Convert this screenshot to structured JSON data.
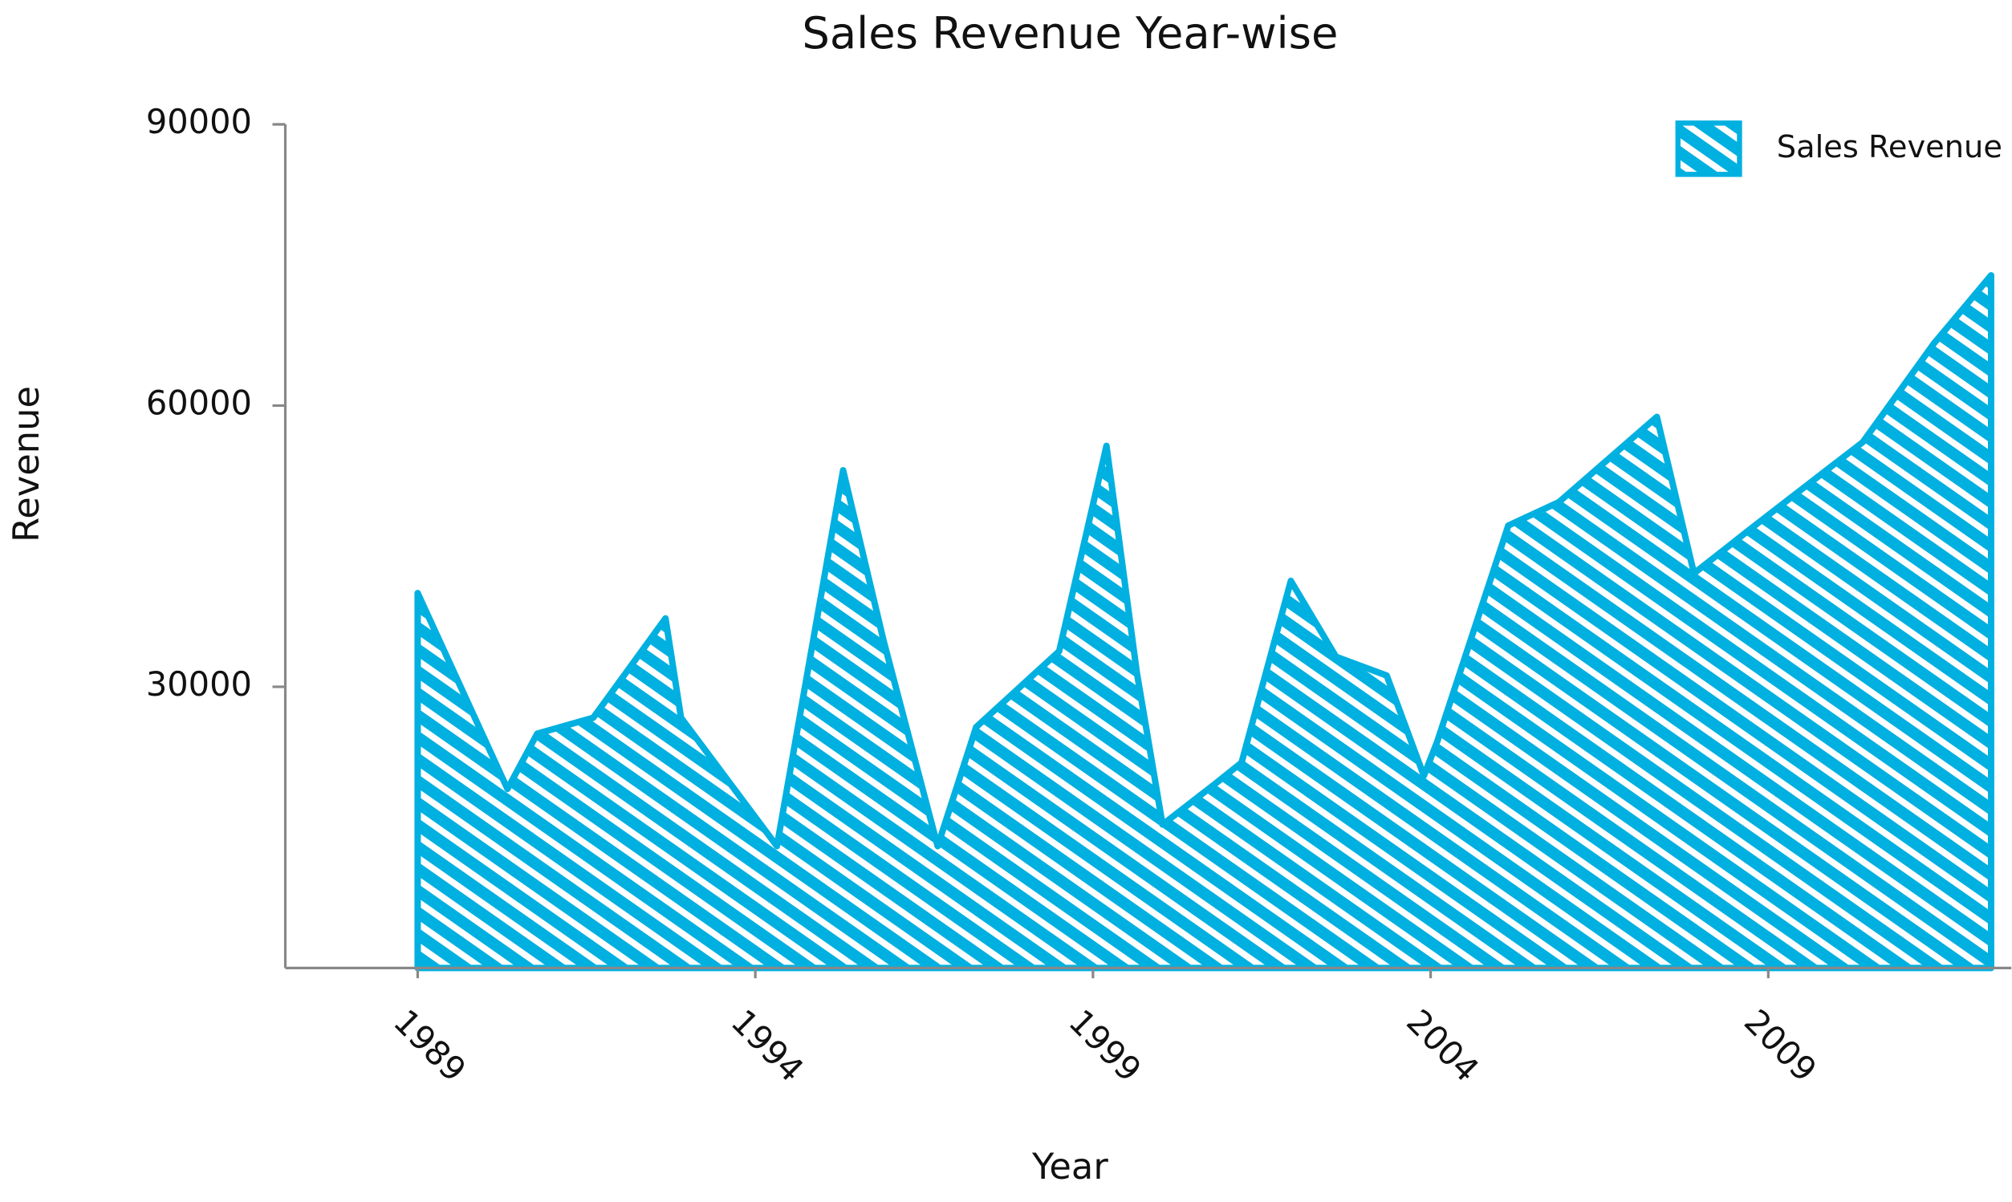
{
  "chart_data": {
    "type": "area",
    "title": "Sales Revenue Year-wise",
    "x_label": "Year",
    "y_label": "Revenue",
    "x": [
      1989.0,
      1990.33,
      1990.77,
      1991.6,
      1992.67,
      1992.9,
      1994.32,
      1995.3,
      1995.9,
      1996.7,
      1997.27,
      1998.5,
      1999.2,
      1999.65,
      2000.03,
      2000.8,
      2001.2,
      2001.93,
      2002.6,
      2003.35,
      2003.9,
      2004.1,
      2005.15,
      2005.9,
      2007.35,
      2007.9,
      2008.8,
      2010.4,
      2011.45,
      2012.3
    ],
    "series": [
      {
        "name": "Sales Revenue",
        "color": "#00b0e0",
        "values": [
          40000,
          19100,
          25000,
          26700,
          37300,
          26700,
          13000,
          53100,
          34900,
          13000,
          25700,
          33800,
          55700,
          31500,
          15300,
          19600,
          21900,
          41300,
          33200,
          31200,
          20500,
          24200,
          47200,
          49700,
          58800,
          42100,
          47200,
          56100,
          66600,
          73900
        ]
      }
    ],
    "xlim": [
      1987.04,
      2012.6
    ],
    "xticks": [
      1989,
      1994,
      1999,
      2004,
      2009
    ],
    "ylim": [
      0,
      90000
    ],
    "yticks": [
      30000,
      60000,
      90000
    ],
    "legend": "upper right"
  }
}
